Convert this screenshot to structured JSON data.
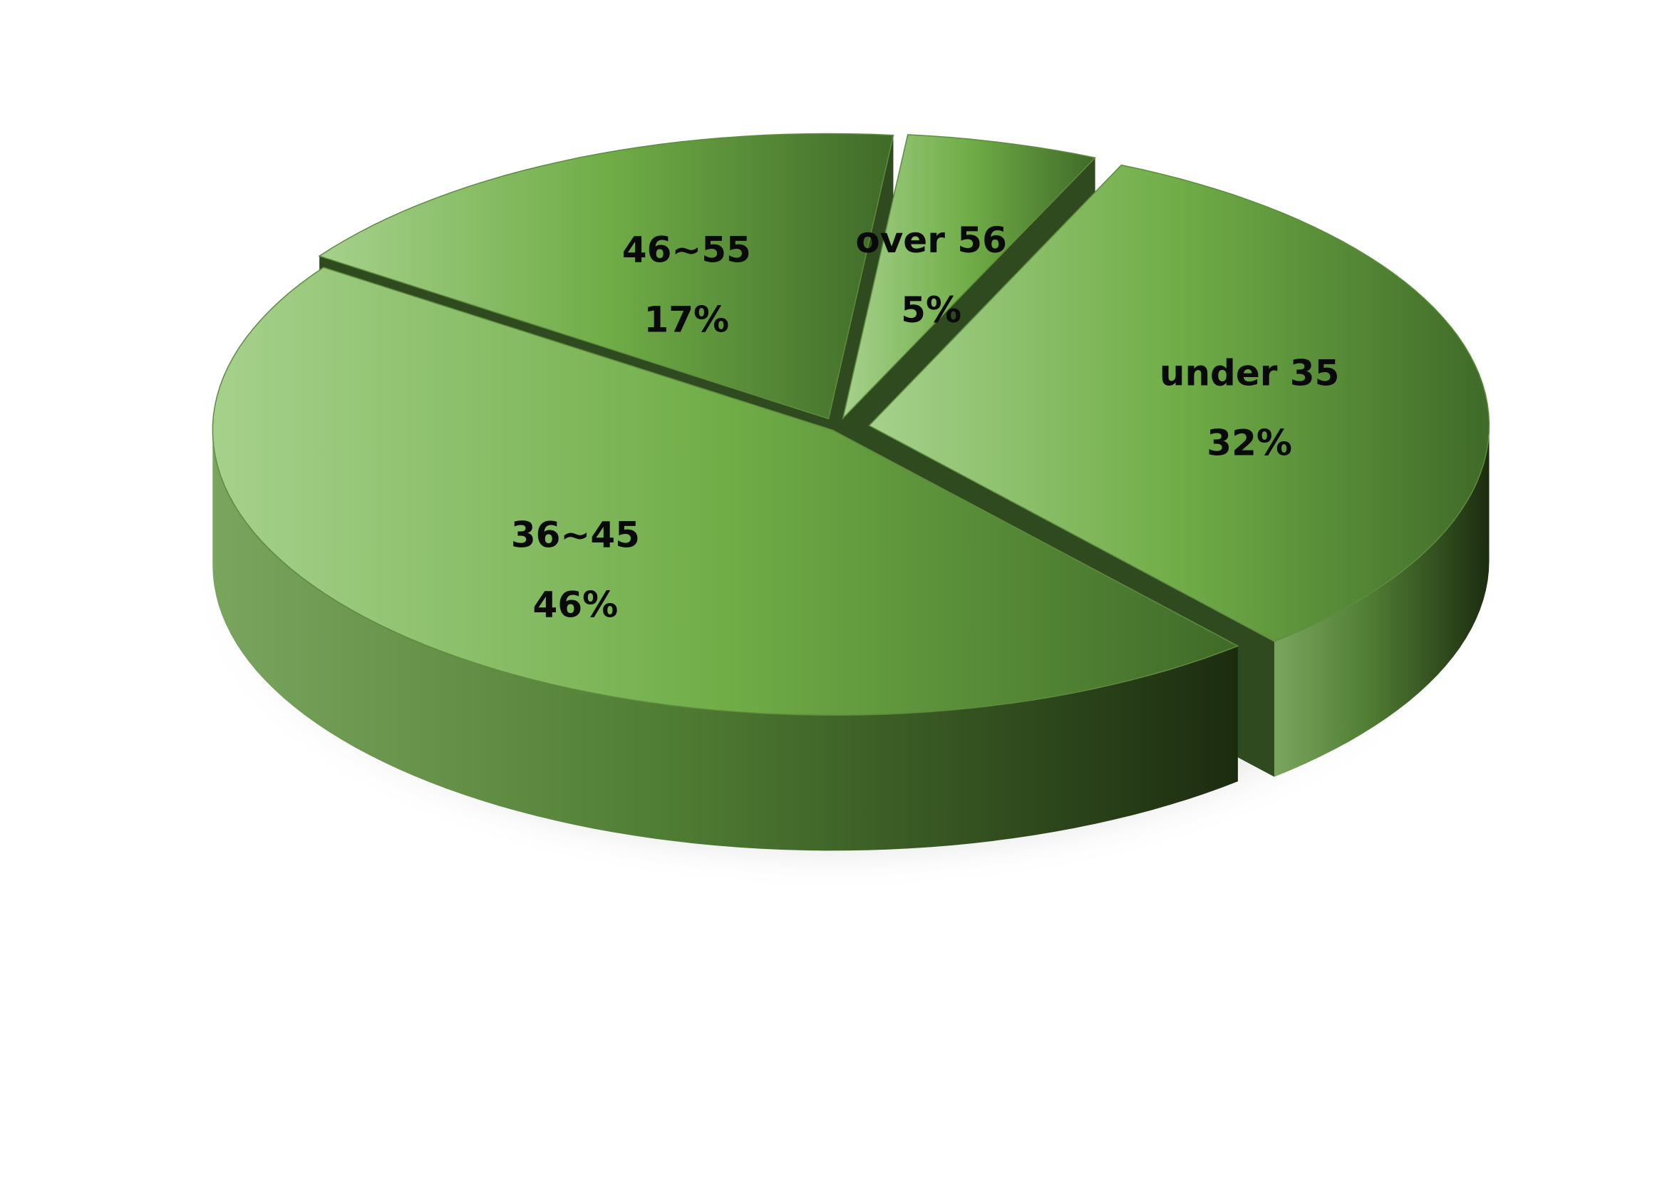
{
  "chart_data": {
    "type": "pie",
    "style": "3d-exploded",
    "categories": [
      "over 56",
      "under 35",
      "36~45",
      "46~55"
    ],
    "values": [
      5,
      32,
      46,
      17
    ],
    "labels": [
      "5%",
      "32%",
      "46%",
      "17%"
    ],
    "legend": "none",
    "colors": {
      "top_light": "#a6d18c",
      "top_mid": "#70ad47",
      "top_dark": "#3f6a28",
      "side_light": "#7aa55e",
      "side_dark": "#1c2c10"
    }
  }
}
